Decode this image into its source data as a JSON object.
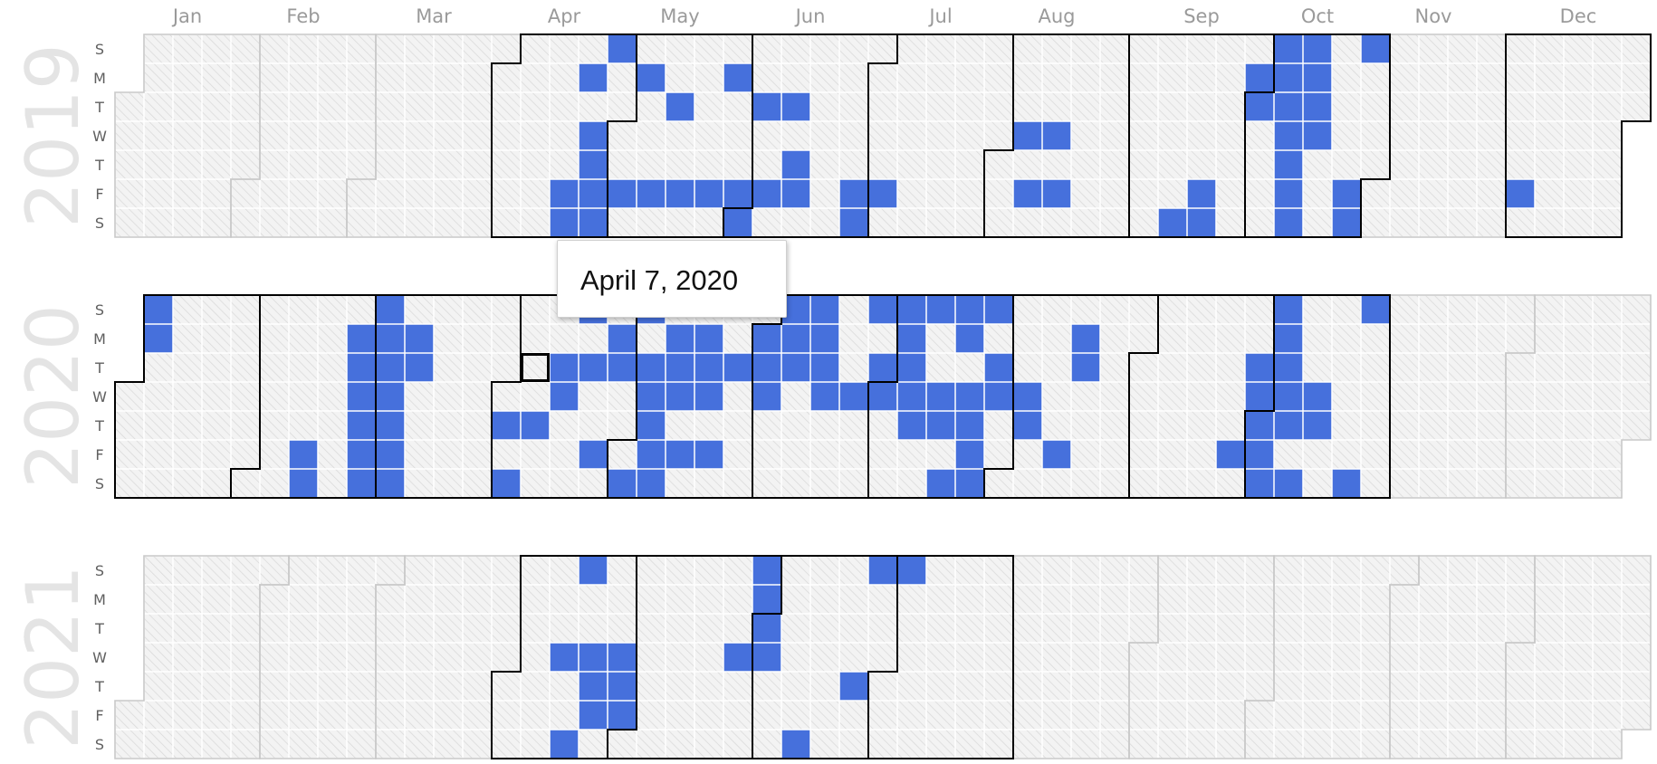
{
  "colors": {
    "active": "#4670dc",
    "empty_fill": "#f3f3f3",
    "hatch": "#dadada",
    "cell_border": "#ffffff",
    "month_outline_active": "#000000",
    "month_outline_inactive": "#c8c8c8",
    "selected_outline": "#000000"
  },
  "tooltip": {
    "text": "April 7, 2020"
  },
  "chart_data": {
    "type": "heatmap",
    "title": "",
    "week_start": "Sunday",
    "day_labels": [
      "S",
      "M",
      "T",
      "W",
      "T",
      "F",
      "S"
    ],
    "month_labels": [
      "Jan",
      "Feb",
      "Mar",
      "Apr",
      "May",
      "Jun",
      "Jul",
      "Aug",
      "Sep",
      "Oct",
      "Nov",
      "Dec"
    ],
    "years": [
      {
        "year": "2019",
        "months_with_data": [
          4,
          5,
          6,
          7,
          8,
          9,
          10,
          12
        ],
        "active_dates": [
          "2019-04-19",
          "2019-04-20",
          "2019-04-22",
          "2019-04-24",
          "2019-04-25",
          "2019-04-26",
          "2019-04-27",
          "2019-04-28",
          "2019-05-03",
          "2019-05-06",
          "2019-05-10",
          "2019-05-14",
          "2019-05-17",
          "2019-05-24",
          "2019-05-27",
          "2019-05-31",
          "2019-06-01",
          "2019-06-04",
          "2019-06-07",
          "2019-06-11",
          "2019-06-13",
          "2019-06-14",
          "2019-06-28",
          "2019-06-29",
          "2019-07-05",
          "2019-08-07",
          "2019-08-09",
          "2019-08-14",
          "2019-08-16",
          "2019-09-14",
          "2019-09-20",
          "2019-09-21",
          "2019-09-30",
          "2019-10-01",
          "2019-10-06",
          "2019-10-07",
          "2019-10-08",
          "2019-10-09",
          "2019-10-10",
          "2019-10-11",
          "2019-10-12",
          "2019-10-13",
          "2019-10-14",
          "2019-10-15",
          "2019-10-16",
          "2019-10-25",
          "2019-10-26",
          "2019-10-27",
          "2019-12-06"
        ]
      },
      {
        "year": "2020",
        "months_with_data": [
          1,
          2,
          3,
          4,
          5,
          6,
          7,
          8,
          9,
          10
        ],
        "selected_date": "2020-04-07",
        "active_dates": [
          "2020-01-05",
          "2020-01-06",
          "2020-02-14",
          "2020-02-15",
          "2020-02-24",
          "2020-02-25",
          "2020-02-26",
          "2020-02-27",
          "2020-02-28",
          "2020-02-29",
          "2020-03-01",
          "2020-03-02",
          "2020-03-03",
          "2020-03-04",
          "2020-03-05",
          "2020-03-06",
          "2020-03-07",
          "2020-03-09",
          "2020-03-10",
          "2020-04-02",
          "2020-04-04",
          "2020-04-09",
          "2020-04-14",
          "2020-04-15",
          "2020-04-19",
          "2020-04-21",
          "2020-04-24",
          "2020-04-27",
          "2020-04-28",
          "2020-05-02",
          "2020-05-03",
          "2020-05-05",
          "2020-05-06",
          "2020-05-07",
          "2020-05-08",
          "2020-05-09",
          "2020-05-11",
          "2020-05-12",
          "2020-05-13",
          "2020-05-15",
          "2020-05-18",
          "2020-05-19",
          "2020-05-20",
          "2020-05-22",
          "2020-05-26",
          "2020-06-01",
          "2020-06-02",
          "2020-06-03",
          "2020-06-07",
          "2020-06-08",
          "2020-06-09",
          "2020-06-14",
          "2020-06-15",
          "2020-06-16",
          "2020-06-17",
          "2020-06-24",
          "2020-06-28",
          "2020-06-30",
          "2020-07-01",
          "2020-07-05",
          "2020-07-06",
          "2020-07-07",
          "2020-07-08",
          "2020-07-09",
          "2020-07-12",
          "2020-07-15",
          "2020-07-16",
          "2020-07-18",
          "2020-07-19",
          "2020-07-20",
          "2020-07-22",
          "2020-07-23",
          "2020-07-24",
          "2020-07-25",
          "2020-07-26",
          "2020-07-28",
          "2020-07-29",
          "2020-08-05",
          "2020-08-06",
          "2020-08-14",
          "2020-08-17",
          "2020-08-18",
          "2020-09-25",
          "2020-09-29",
          "2020-09-30",
          "2020-10-01",
          "2020-10-02",
          "2020-10-03",
          "2020-10-04",
          "2020-10-05",
          "2020-10-06",
          "2020-10-07",
          "2020-10-08",
          "2020-10-10",
          "2020-10-14",
          "2020-10-15",
          "2020-10-24",
          "2020-10-25"
        ]
      },
      {
        "year": "2021",
        "months_with_data": [
          4,
          5,
          6,
          7
        ],
        "active_dates": [
          "2021-04-14",
          "2021-04-17",
          "2021-04-18",
          "2021-04-21",
          "2021-04-22",
          "2021-04-23",
          "2021-04-28",
          "2021-04-29",
          "2021-04-30",
          "2021-05-26",
          "2021-05-30",
          "2021-05-31",
          "2021-06-01",
          "2021-06-02",
          "2021-06-12",
          "2021-06-24",
          "2021-06-27",
          "2021-07-04"
        ]
      }
    ]
  }
}
